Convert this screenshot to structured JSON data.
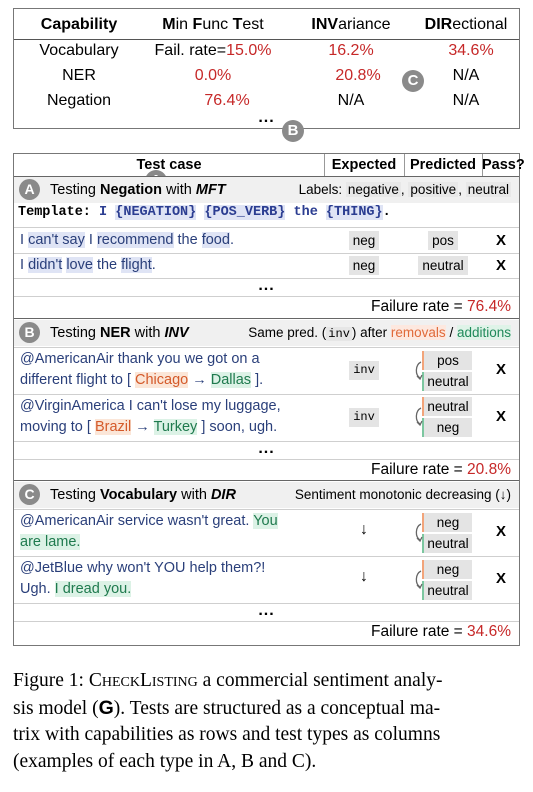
{
  "matrix": {
    "headers": {
      "capability": "Capability",
      "mft_bold1": "M",
      "mft_rest1": "in ",
      "mft_bold2": "F",
      "mft_rest2": "unc ",
      "mft_bold3": "T",
      "mft_rest3": "est",
      "inv_bold": "INV",
      "inv_rest": "ariance",
      "dir_bold": "DIR",
      "dir_rest": "ectional"
    },
    "rows": [
      {
        "capability": "Vocabulary",
        "mft_prefix": "Fail. rate=",
        "mft": "15.0%",
        "inv": "16.2%",
        "dir": "34.6%",
        "badge": "C"
      },
      {
        "capability": "NER",
        "mft": "0.0%",
        "inv": "20.8%",
        "dir": "N/A",
        "badge": "B"
      },
      {
        "capability": "Negation",
        "mft": "76.4%",
        "inv": "N/A",
        "dir": "N/A",
        "badge": "A"
      }
    ],
    "ellipsis": "..."
  },
  "table": {
    "headers": {
      "test_case": "Test case",
      "expected": "Expected",
      "predicted": "Predicted",
      "pass": "Pass?"
    },
    "sections": [
      {
        "badge": "A",
        "title_prefix": "Testing ",
        "title_bold": "Negation",
        "title_mid": " with ",
        "title_type": "MFT",
        "note_prefix": "Labels: ",
        "note_l1": "negative",
        "note_sep1": ", ",
        "note_l2": "positive",
        "note_sep2": ", ",
        "note_l3": "neutral",
        "template_label": "Template:",
        "template_tokens": [
          "I",
          "{NEGATION}",
          "{POS_VERB}",
          "the",
          "{THING}",
          "."
        ],
        "rows": [
          {
            "segments": [
              "I ",
              "can't say",
              " I ",
              "recommend",
              " the ",
              "food",
              "."
            ],
            "expected": "neg",
            "predicted": "pos",
            "pass": "X"
          },
          {
            "segments": [
              "I ",
              "didn't",
              " ",
              "love",
              " the ",
              "flight",
              "."
            ],
            "expected": "neg",
            "predicted": "neutral",
            "pass": "X"
          }
        ],
        "ellipsis": "...",
        "failure_label": "Failure rate = ",
        "failure_value": "76.4%"
      },
      {
        "badge": "B",
        "title_prefix": "Testing ",
        "title_bold": "NER",
        "title_mid": " with ",
        "title_type": "INV",
        "note_prefix": "Same pred. (",
        "note_inv": "inv",
        "note_after": ") after ",
        "note_removals": "removals",
        "note_slash": " / ",
        "note_additions": "additions",
        "rows": [
          {
            "line1": "@AmericanAir thank you we got on a",
            "line2_pre": "different flight to [ ",
            "removed": "Chicago",
            "arrow": " → ",
            "added": "Dallas",
            "line2_post": " ].",
            "expected": "inv",
            "pred1": "pos",
            "pred2": "neutral",
            "pass": "X"
          },
          {
            "line1": "@VirginAmerica I can't lose my luggage,",
            "line2_pre": "moving to [ ",
            "removed": "Brazil",
            "arrow": " → ",
            "added": "Turkey",
            "line2_post": " ] soon, ugh.",
            "expected": "inv",
            "pred1": "neutral",
            "pred2": "neg",
            "pass": "X"
          }
        ],
        "ellipsis": "...",
        "failure_label": "Failure rate = ",
        "failure_value": "20.8%"
      },
      {
        "badge": "C",
        "title_prefix": "Testing ",
        "title_bold": "Vocabulary",
        "title_mid": " with ",
        "title_type": "DIR",
        "note": "Sentiment monotonic decreasing (↓)",
        "rows": [
          {
            "line1_pre": "@AmericanAir service wasn't great. ",
            "line1_add": "You",
            "line2_add": "are lame.",
            "line2_post": "",
            "expected": "↓",
            "pred1": "neg",
            "pred2": "neutral",
            "pass": "X"
          },
          {
            "line1_pre": "@JetBlue why won't YOU help them?!",
            "line1_add": "",
            "line2_pre": "Ugh. ",
            "line2_add": "I dread you.",
            "expected": "↓",
            "pred1": "neg",
            "pred2": "neutral",
            "pass": "X"
          }
        ],
        "ellipsis": "...",
        "failure_label": "Failure rate = ",
        "failure_value": "34.6%"
      }
    ]
  },
  "caption": {
    "prefix": "Figure 1: ",
    "sc": "CheckListing",
    "line1_rest": " a commercial sentiment analy-",
    "line2_pre": "sis model (",
    "logo": "G",
    "line2_post": "). Tests are structured as a conceptual ma-",
    "line3": "trix with capabilities as rows and test types as columns",
    "line4": "(examples of each type in A, B and C)."
  },
  "colors": {
    "red": "#c62828",
    "removal": "#e06a3a",
    "addition": "#1f8a5a",
    "badge": "#8a8a8a",
    "text_blue": "#2a3f7a"
  }
}
